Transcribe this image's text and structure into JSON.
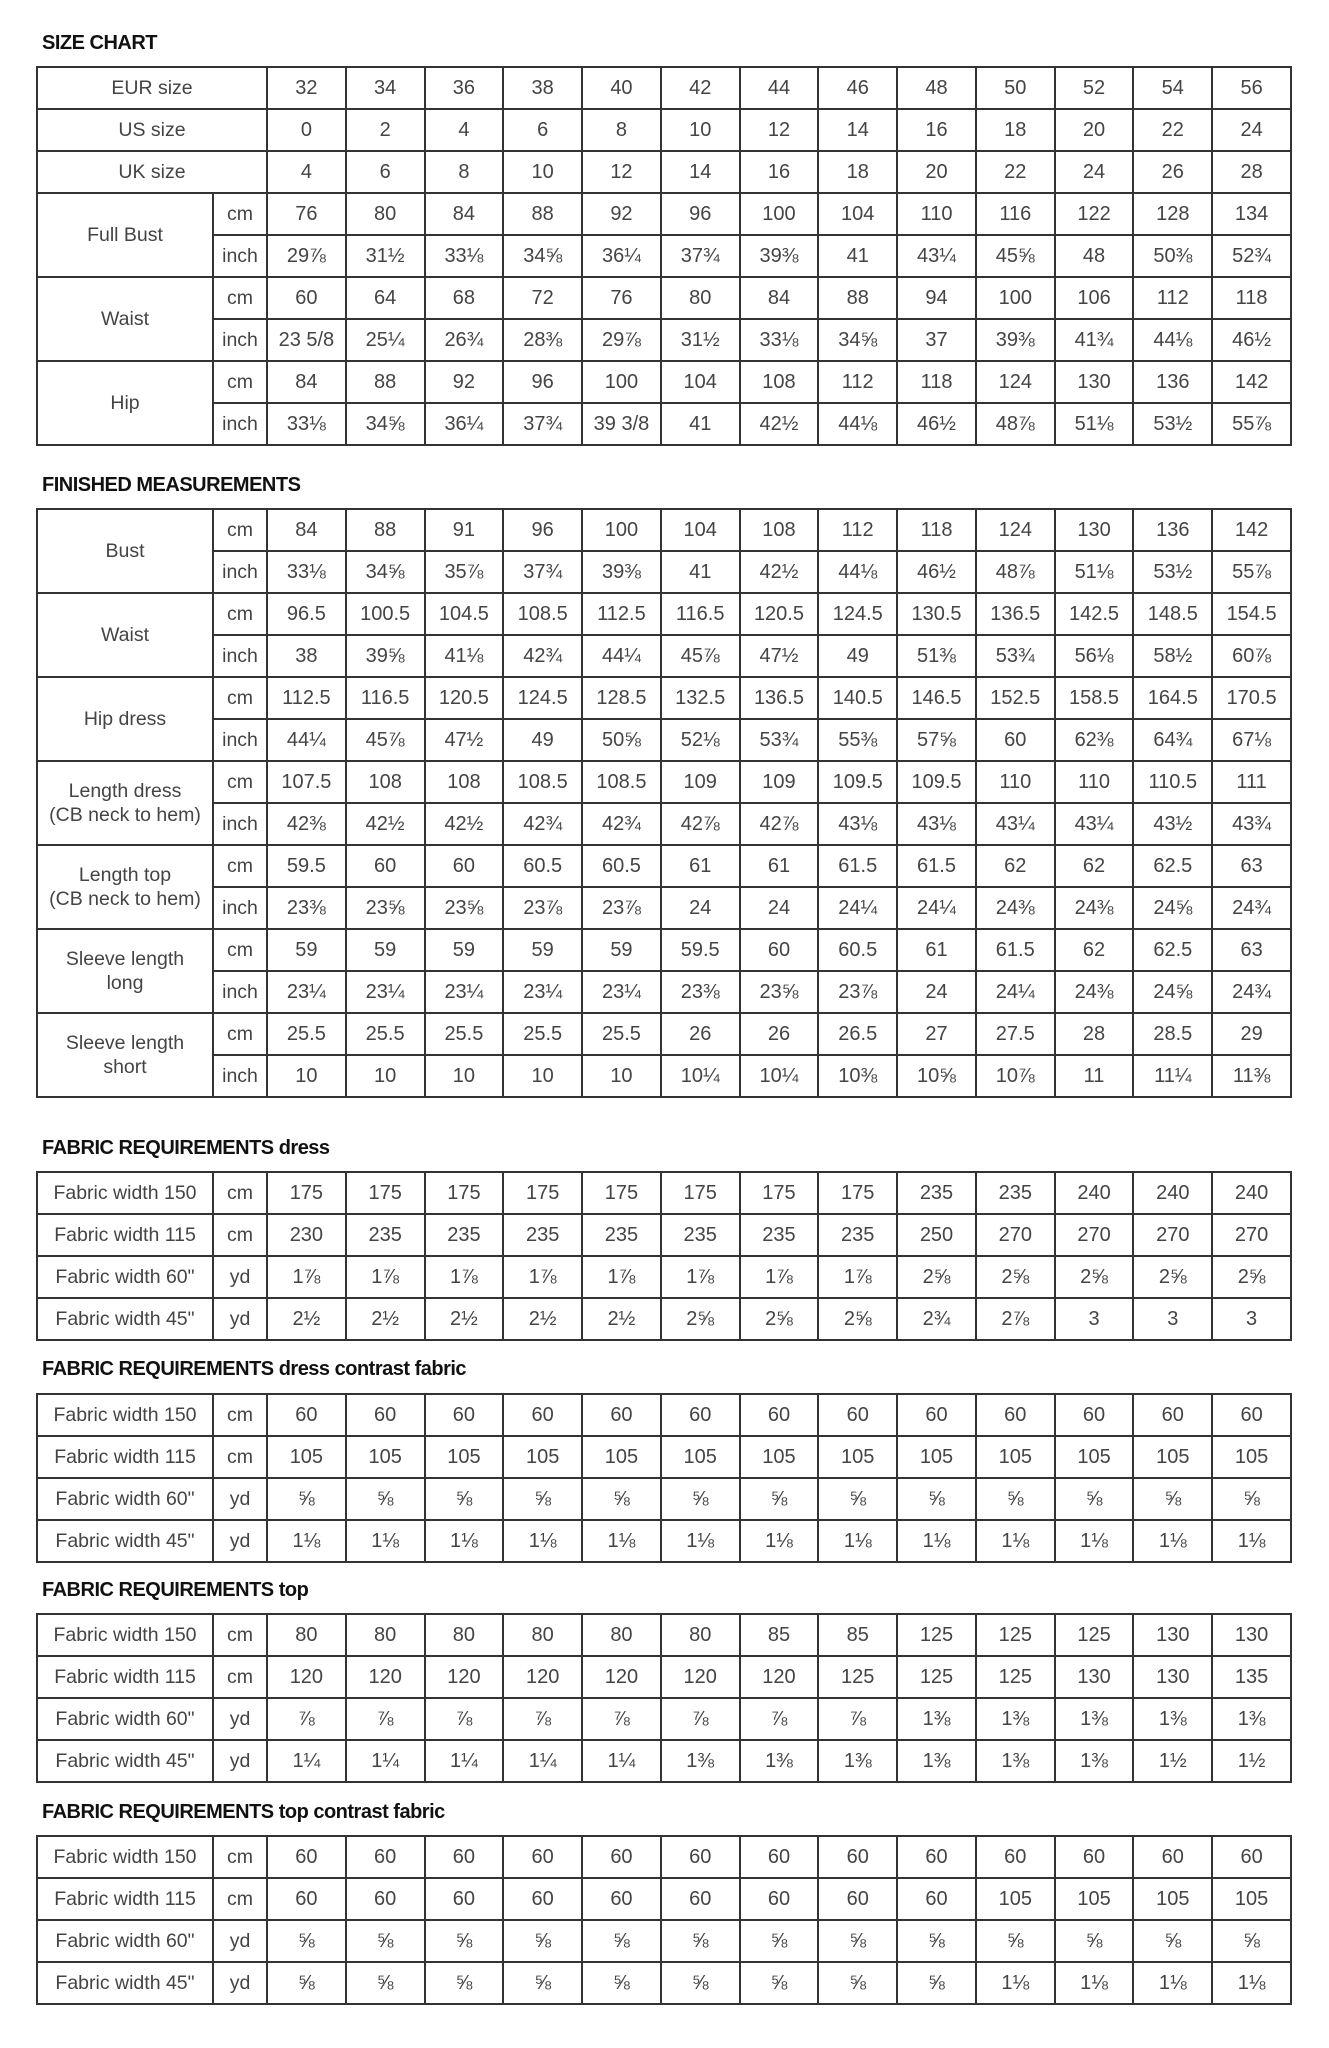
{
  "sections": [
    {
      "title_bold": "SIZE CHART",
      "title_rest": "",
      "rows": [
        {
          "label": "EUR size",
          "values": [
            "32",
            "34",
            "36",
            "38",
            "40",
            "42",
            "44",
            "46",
            "48",
            "50",
            "52",
            "54",
            "56"
          ]
        },
        {
          "label": "US size",
          "values": [
            "0",
            "2",
            "4",
            "6",
            "8",
            "10",
            "12",
            "14",
            "16",
            "18",
            "20",
            "22",
            "24"
          ]
        },
        {
          "label": "UK size",
          "values": [
            "4",
            "6",
            "8",
            "10",
            "12",
            "14",
            "16",
            "18",
            "20",
            "22",
            "24",
            "26",
            "28"
          ]
        },
        {
          "group": "Full Bust",
          "rows": [
            {
              "unit": "cm",
              "values": [
                "76",
                "80",
                "84",
                "88",
                "92",
                "96",
                "100",
                "104",
                "110",
                "116",
                "122",
                "128",
                "134"
              ]
            },
            {
              "unit": "inch",
              "values": [
                "29⅞",
                "31½",
                "33⅛",
                "34⅝",
                "36¼",
                "37¾",
                "39⅜",
                "41",
                "43¼",
                "45⅝",
                "48",
                "50⅜",
                "52¾"
              ]
            }
          ]
        },
        {
          "group": "Waist",
          "rows": [
            {
              "unit": "cm",
              "values": [
                "60",
                "64",
                "68",
                "72",
                "76",
                "80",
                "84",
                "88",
                "94",
                "100",
                "106",
                "112",
                "118"
              ]
            },
            {
              "unit": "inch",
              "values": [
                "23 5/8",
                "25¼",
                "26¾",
                "28⅜",
                "29⅞",
                "31½",
                "33⅛",
                "34⅝",
                "37",
                "39⅜",
                "41¾",
                "44⅛",
                "46½"
              ]
            }
          ]
        },
        {
          "group": "Hip",
          "rows": [
            {
              "unit": "cm",
              "values": [
                "84",
                "88",
                "92",
                "96",
                "100",
                "104",
                "108",
                "112",
                "118",
                "124",
                "130",
                "136",
                "142"
              ]
            },
            {
              "unit": "inch",
              "values": [
                "33⅛",
                "34⅝",
                "36¼",
                "37¾",
                "39 3/8",
                "41",
                "42½",
                "44⅛",
                "46½",
                "48⅞",
                "51⅛",
                "53½",
                "55⅞"
              ]
            }
          ]
        }
      ]
    },
    {
      "title_bold": "FINISHED MEASUREMENTS",
      "title_rest": "",
      "rows": [
        {
          "group": "Bust",
          "rows": [
            {
              "unit": "cm",
              "values": [
                "84",
                "88",
                "91",
                "96",
                "100",
                "104",
                "108",
                "112",
                "118",
                "124",
                "130",
                "136",
                "142"
              ]
            },
            {
              "unit": "inch",
              "values": [
                "33⅛",
                "34⅝",
                "35⅞",
                "37¾",
                "39⅜",
                "41",
                "42½",
                "44⅛",
                "46½",
                "48⅞",
                "51⅛",
                "53½",
                "55⅞"
              ]
            }
          ]
        },
        {
          "group": "Waist",
          "rows": [
            {
              "unit": "cm",
              "values": [
                "96.5",
                "100.5",
                "104.5",
                "108.5",
                "112.5",
                "116.5",
                "120.5",
                "124.5",
                "130.5",
                "136.5",
                "142.5",
                "148.5",
                "154.5"
              ]
            },
            {
              "unit": "inch",
              "values": [
                "38",
                "39⅝",
                "41⅛",
                "42¾",
                "44¼",
                "45⅞",
                "47½",
                "49",
                "51⅜",
                "53¾",
                "56⅛",
                "58½",
                "60⅞"
              ]
            }
          ]
        },
        {
          "group": "Hip dress",
          "rows": [
            {
              "unit": "cm",
              "values": [
                "112.5",
                "116.5",
                "120.5",
                "124.5",
                "128.5",
                "132.5",
                "136.5",
                "140.5",
                "146.5",
                "152.5",
                "158.5",
                "164.5",
                "170.5"
              ]
            },
            {
              "unit": "inch",
              "values": [
                "44¼",
                "45⅞",
                "47½",
                "49",
                "50⅝",
                "52⅛",
                "53¾",
                "55⅜",
                "57⅝",
                "60",
                "62⅜",
                "64¾",
                "67⅛"
              ]
            }
          ]
        },
        {
          "group": "Length dress\n(CB neck to hem)",
          "rows": [
            {
              "unit": "cm",
              "values": [
                "107.5",
                "108",
                "108",
                "108.5",
                "108.5",
                "109",
                "109",
                "109.5",
                "109.5",
                "110",
                "110",
                "110.5",
                "111"
              ]
            },
            {
              "unit": "inch",
              "values": [
                "42⅜",
                "42½",
                "42½",
                "42¾",
                "42¾",
                "42⅞",
                "42⅞",
                "43⅛",
                "43⅛",
                "43¼",
                "43¼",
                "43½",
                "43¾"
              ]
            }
          ]
        },
        {
          "group": "Length top\n(CB neck to hem)",
          "rows": [
            {
              "unit": "cm",
              "values": [
                "59.5",
                "60",
                "60",
                "60.5",
                "60.5",
                "61",
                "61",
                "61.5",
                "61.5",
                "62",
                "62",
                "62.5",
                "63"
              ]
            },
            {
              "unit": "inch",
              "values": [
                "23⅜",
                "23⅝",
                "23⅝",
                "23⅞",
                "23⅞",
                "24",
                "24",
                "24¼",
                "24¼",
                "24⅜",
                "24⅜",
                "24⅝",
                "24¾"
              ]
            }
          ]
        },
        {
          "group": "Sleeve length\nlong",
          "rows": [
            {
              "unit": "cm",
              "values": [
                "59",
                "59",
                "59",
                "59",
                "59",
                "59.5",
                "60",
                "60.5",
                "61",
                "61.5",
                "62",
                "62.5",
                "63"
              ]
            },
            {
              "unit": "inch",
              "values": [
                "23¼",
                "23¼",
                "23¼",
                "23¼",
                "23¼",
                "23⅜",
                "23⅝",
                "23⅞",
                "24",
                "24¼",
                "24⅜",
                "24⅝",
                "24¾"
              ]
            }
          ]
        },
        {
          "group": "Sleeve length\nshort",
          "rows": [
            {
              "unit": "cm",
              "values": [
                "25.5",
                "25.5",
                "25.5",
                "25.5",
                "25.5",
                "26",
                "26",
                "26.5",
                "27",
                "27.5",
                "28",
                "28.5",
                "29"
              ]
            },
            {
              "unit": "inch",
              "values": [
                "10",
                "10",
                "10",
                "10",
                "10",
                "10¼",
                "10¼",
                "10⅜",
                "10⅝",
                "10⅞",
                "11",
                "11¼",
                "11⅜"
              ]
            }
          ]
        }
      ]
    },
    {
      "title_bold": "FABRIC REQUIREMENTS",
      "title_rest": "dress",
      "rows": [
        {
          "label": "Fabric width 150",
          "unit": "cm",
          "values": [
            "175",
            "175",
            "175",
            "175",
            "175",
            "175",
            "175",
            "175",
            "235",
            "235",
            "240",
            "240",
            "240"
          ]
        },
        {
          "label": "Fabric width 115",
          "unit": "cm",
          "values": [
            "230",
            "235",
            "235",
            "235",
            "235",
            "235",
            "235",
            "235",
            "250",
            "270",
            "270",
            "270",
            "270"
          ]
        },
        {
          "label": "Fabric width 60\"",
          "unit": "yd",
          "values": [
            "1⅞",
            "1⅞",
            "1⅞",
            "1⅞",
            "1⅞",
            "1⅞",
            "1⅞",
            "1⅞",
            "2⅝",
            "2⅝",
            "2⅝",
            "2⅝",
            "2⅝"
          ]
        },
        {
          "label": "Fabric width 45\"",
          "unit": "yd",
          "values": [
            "2½",
            "2½",
            "2½",
            "2½",
            "2½",
            "2⅝",
            "2⅝",
            "2⅝",
            "2¾",
            "2⅞",
            "3",
            "3",
            "3"
          ]
        }
      ]
    },
    {
      "title_bold": "FABRIC REQUIREMENTS",
      "title_rest": "dress contrast fabric",
      "rows": [
        {
          "label": "Fabric width 150",
          "unit": "cm",
          "values": [
            "60",
            "60",
            "60",
            "60",
            "60",
            "60",
            "60",
            "60",
            "60",
            "60",
            "60",
            "60",
            "60"
          ]
        },
        {
          "label": "Fabric width 115",
          "unit": "cm",
          "values": [
            "105",
            "105",
            "105",
            "105",
            "105",
            "105",
            "105",
            "105",
            "105",
            "105",
            "105",
            "105",
            "105"
          ]
        },
        {
          "label": "Fabric width 60\"",
          "unit": "yd",
          "values": [
            "⅝",
            "⅝",
            "⅝",
            "⅝",
            "⅝",
            "⅝",
            "⅝",
            "⅝",
            "⅝",
            "⅝",
            "⅝",
            "⅝",
            "⅝"
          ]
        },
        {
          "label": "Fabric width 45\"",
          "unit": "yd",
          "values": [
            "1⅛",
            "1⅛",
            "1⅛",
            "1⅛",
            "1⅛",
            "1⅛",
            "1⅛",
            "1⅛",
            "1⅛",
            "1⅛",
            "1⅛",
            "1⅛",
            "1⅛"
          ]
        }
      ]
    },
    {
      "title_bold": "FABRIC REQUIREMENTS",
      "title_rest": "top",
      "rows": [
        {
          "label": "Fabric width 150",
          "unit": "cm",
          "values": [
            "80",
            "80",
            "80",
            "80",
            "80",
            "80",
            "85",
            "85",
            "125",
            "125",
            "125",
            "130",
            "130"
          ]
        },
        {
          "label": "Fabric width 115",
          "unit": "cm",
          "values": [
            "120",
            "120",
            "120",
            "120",
            "120",
            "120",
            "120",
            "125",
            "125",
            "125",
            "130",
            "130",
            "135"
          ]
        },
        {
          "label": "Fabric width 60\"",
          "unit": "yd",
          "values": [
            "⅞",
            "⅞",
            "⅞",
            "⅞",
            "⅞",
            "⅞",
            "⅞",
            "⅞",
            "1⅜",
            "1⅜",
            "1⅜",
            "1⅜",
            "1⅜"
          ]
        },
        {
          "label": "Fabric width 45\"",
          "unit": "yd",
          "values": [
            "1¼",
            "1¼",
            "1¼",
            "1¼",
            "1¼",
            "1⅜",
            "1⅜",
            "1⅜",
            "1⅜",
            "1⅜",
            "1⅜",
            "1½",
            "1½"
          ]
        }
      ]
    },
    {
      "title_bold": "FABRIC REQUIREMENTS",
      "title_rest": "top contrast fabric",
      "rows": [
        {
          "label": "Fabric width 150",
          "unit": "cm",
          "values": [
            "60",
            "60",
            "60",
            "60",
            "60",
            "60",
            "60",
            "60",
            "60",
            "60",
            "60",
            "60",
            "60"
          ]
        },
        {
          "label": "Fabric width 115",
          "unit": "cm",
          "values": [
            "60",
            "60",
            "60",
            "60",
            "60",
            "60",
            "60",
            "60",
            "60",
            "105",
            "105",
            "105",
            "105"
          ]
        },
        {
          "label": "Fabric width 60\"",
          "unit": "yd",
          "values": [
            "⅝",
            "⅝",
            "⅝",
            "⅝",
            "⅝",
            "⅝",
            "⅝",
            "⅝",
            "⅝",
            "⅝",
            "⅝",
            "⅝",
            "⅝"
          ]
        },
        {
          "label": "Fabric width 45\"",
          "unit": "yd",
          "values": [
            "⅝",
            "⅝",
            "⅝",
            "⅝",
            "⅝",
            "⅝",
            "⅝",
            "⅝",
            "⅝",
            "1⅛",
            "1⅛",
            "1⅛",
            "1⅛"
          ]
        }
      ]
    }
  ]
}
